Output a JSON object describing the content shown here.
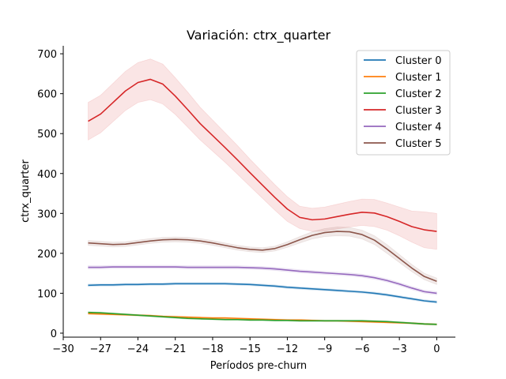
{
  "chart_data": {
    "type": "line",
    "title": "Variación: ctrx_quarter",
    "xlabel": "Períodos pre-churn",
    "ylabel": "ctrx_quarter",
    "xlim": [
      -30,
      1.5
    ],
    "ylim": [
      -10,
      720
    ],
    "xticks": [
      -30,
      -27,
      -24,
      -21,
      -18,
      -15,
      -12,
      -9,
      -6,
      -3,
      0
    ],
    "yticks": [
      0,
      100,
      200,
      300,
      400,
      500,
      600,
      700
    ],
    "legend_position": "top-right",
    "grid": false,
    "x": [
      -28,
      -27,
      -26,
      -25,
      -24,
      -23,
      -22,
      -21,
      -20,
      -19,
      -18,
      -17,
      -16,
      -15,
      -14,
      -13,
      -12,
      -11,
      -10,
      -9,
      -8,
      -7,
      -6,
      -5,
      -4,
      -3,
      -2,
      -1,
      0
    ],
    "series": [
      {
        "name": "Cluster 0",
        "color": "#1f77b4",
        "values": [
          120,
          121,
          121,
          122,
          122,
          123,
          123,
          124,
          124,
          124,
          124,
          124,
          123,
          122,
          120,
          118,
          115,
          113,
          111,
          109,
          107,
          105,
          103,
          100,
          96,
          91,
          86,
          81,
          78
        ],
        "lower": [
          117,
          118,
          118,
          119,
          119,
          120,
          120,
          121,
          121,
          121,
          121,
          121,
          120,
          119,
          117,
          115,
          112,
          110,
          108,
          106,
          104,
          102,
          100,
          97,
          93,
          88,
          83,
          78,
          75
        ],
        "upper": [
          123,
          124,
          124,
          125,
          125,
          126,
          126,
          127,
          127,
          127,
          127,
          127,
          126,
          125,
          123,
          121,
          118,
          116,
          114,
          112,
          110,
          108,
          106,
          103,
          99,
          94,
          89,
          84,
          81
        ]
      },
      {
        "name": "Cluster 1",
        "color": "#ff7f0e",
        "values": [
          49,
          48,
          47,
          46,
          45,
          44,
          42,
          41,
          40,
          39,
          38,
          38,
          37,
          36,
          35,
          34,
          33,
          33,
          32,
          31,
          31,
          30,
          29,
          28,
          27,
          26,
          25,
          23,
          22
        ],
        "lower": [
          47,
          46,
          45,
          44,
          43,
          42,
          40,
          39,
          38,
          37,
          36,
          36,
          35,
          34,
          33,
          32,
          31,
          31,
          30,
          29,
          29,
          28,
          27,
          26,
          25,
          24,
          23,
          21,
          20
        ],
        "upper": [
          51,
          50,
          49,
          48,
          47,
          46,
          44,
          43,
          42,
          41,
          40,
          40,
          39,
          38,
          37,
          36,
          35,
          35,
          34,
          33,
          33,
          32,
          31,
          30,
          29,
          28,
          27,
          25,
          24
        ]
      },
      {
        "name": "Cluster 2",
        "color": "#2ca02c",
        "values": [
          52,
          51,
          49,
          47,
          45,
          43,
          41,
          39,
          37,
          36,
          35,
          34,
          34,
          33,
          33,
          32,
          32,
          31,
          31,
          31,
          31,
          31,
          31,
          30,
          29,
          27,
          25,
          23,
          22
        ],
        "lower": [
          50,
          49,
          47,
          45,
          43,
          41,
          39,
          37,
          35,
          34,
          33,
          32,
          32,
          31,
          31,
          30,
          30,
          29,
          29,
          29,
          29,
          29,
          29,
          28,
          27,
          25,
          23,
          21,
          20
        ],
        "upper": [
          54,
          53,
          51,
          49,
          47,
          45,
          43,
          41,
          39,
          38,
          37,
          36,
          36,
          35,
          35,
          34,
          34,
          33,
          33,
          33,
          33,
          33,
          33,
          32,
          31,
          29,
          27,
          25,
          24
        ]
      },
      {
        "name": "Cluster 3",
        "color": "#d62728",
        "values": [
          531,
          549,
          578,
          607,
          628,
          636,
          624,
          594,
          560,
          525,
          495,
          465,
          434,
          402,
          371,
          340,
          311,
          290,
          284,
          286,
          292,
          298,
          303,
          301,
          292,
          280,
          267,
          259,
          255
        ],
        "lower": [
          484,
          502,
          530,
          558,
          578,
          585,
          574,
          548,
          516,
          484,
          456,
          428,
          398,
          368,
          338,
          308,
          280,
          262,
          255,
          256,
          261,
          266,
          270,
          267,
          258,
          244,
          228,
          214,
          210
        ],
        "upper": [
          578,
          596,
          626,
          656,
          678,
          687,
          674,
          640,
          604,
          566,
          534,
          502,
          470,
          436,
          404,
          372,
          342,
          318,
          313,
          316,
          323,
          330,
          336,
          335,
          326,
          316,
          306,
          304,
          300
        ]
      },
      {
        "name": "Cluster 4",
        "color": "#9467bd",
        "values": [
          165,
          165,
          166,
          166,
          166,
          166,
          166,
          166,
          165,
          165,
          165,
          165,
          165,
          164,
          163,
          161,
          158,
          155,
          153,
          151,
          149,
          147,
          144,
          139,
          132,
          123,
          113,
          104,
          100
        ],
        "lower": [
          161,
          161,
          162,
          162,
          162,
          162,
          162,
          162,
          161,
          161,
          161,
          161,
          161,
          160,
          159,
          157,
          154,
          151,
          149,
          147,
          145,
          143,
          140,
          135,
          128,
          119,
          109,
          100,
          96
        ],
        "upper": [
          169,
          169,
          170,
          170,
          170,
          170,
          170,
          170,
          169,
          169,
          169,
          169,
          169,
          168,
          167,
          165,
          162,
          159,
          157,
          155,
          153,
          151,
          148,
          143,
          136,
          127,
          117,
          108,
          104
        ]
      },
      {
        "name": "Cluster 5",
        "color": "#8c564b",
        "values": [
          226,
          224,
          222,
          223,
          227,
          231,
          234,
          235,
          234,
          231,
          226,
          220,
          214,
          210,
          208,
          212,
          222,
          234,
          245,
          252,
          255,
          254,
          247,
          233,
          211,
          187,
          163,
          142,
          130
        ],
        "lower": [
          220,
          218,
          216,
          217,
          221,
          225,
          228,
          229,
          228,
          225,
          220,
          214,
          208,
          204,
          202,
          206,
          215,
          226,
          236,
          242,
          244,
          243,
          236,
          222,
          200,
          177,
          154,
          134,
          122
        ],
        "upper": [
          232,
          230,
          228,
          229,
          233,
          237,
          240,
          241,
          240,
          237,
          232,
          226,
          220,
          216,
          214,
          218,
          229,
          242,
          254,
          262,
          266,
          265,
          258,
          244,
          222,
          197,
          172,
          150,
          138
        ]
      }
    ]
  }
}
